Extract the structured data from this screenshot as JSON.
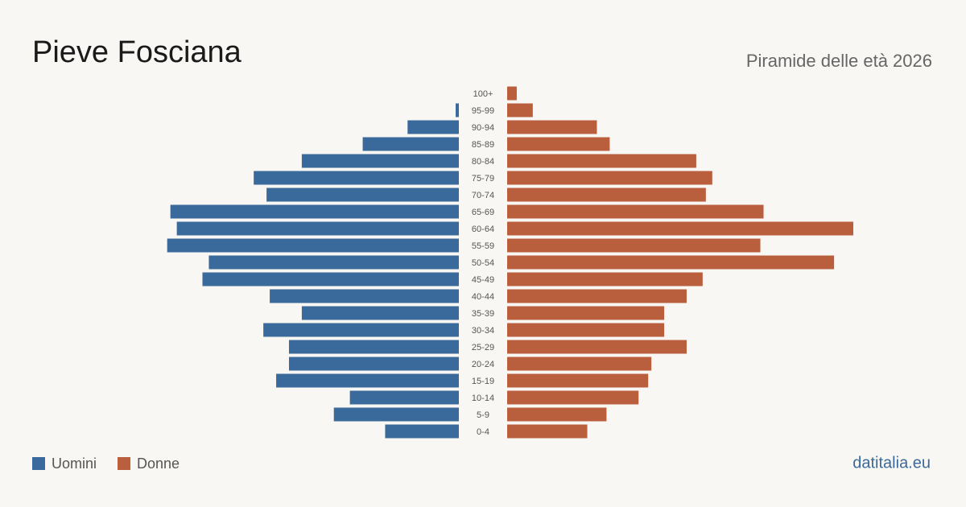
{
  "chart_data": {
    "type": "pyramid",
    "title": "Pieve Fosciana",
    "subtitle": "Piramide delle età 2026",
    "source": "datitalia.eu",
    "categories": [
      "100+",
      "95-99",
      "90-94",
      "85-89",
      "80-84",
      "75-79",
      "70-74",
      "65-69",
      "60-64",
      "55-59",
      "50-54",
      "45-49",
      "40-44",
      "35-39",
      "30-34",
      "25-29",
      "20-24",
      "15-19",
      "10-14",
      "5-9",
      "0-4"
    ],
    "series": [
      {
        "name": "Uomini",
        "color": "#3a6a9b",
        "values": [
          0,
          1,
          16,
          30,
          49,
          64,
          60,
          90,
          88,
          91,
          78,
          80,
          59,
          49,
          61,
          53,
          53,
          57,
          34,
          39,
          23
        ]
      },
      {
        "name": "Donne",
        "color": "#b95f3e",
        "values": [
          3,
          8,
          28,
          32,
          59,
          64,
          62,
          80,
          108,
          79,
          102,
          61,
          56,
          49,
          49,
          56,
          45,
          44,
          41,
          31,
          25
        ]
      }
    ]
  }
}
